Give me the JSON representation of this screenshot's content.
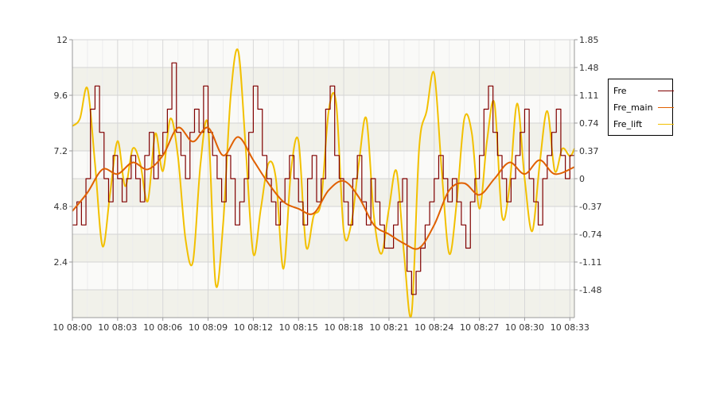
{
  "chart_data": {
    "type": "line",
    "title": "",
    "x_ticks": [
      "10 08:00",
      "10 08:03",
      "10 08:06",
      "10 08:09",
      "10 08:12",
      "10 08:15",
      "10 08:18",
      "10 08:21",
      "10 08:24",
      "10 08:27",
      "10 08:30",
      "10 08:33"
    ],
    "x_range_minutes": [
      0,
      33.3
    ],
    "y_left": {
      "ticks": [
        "12",
        "9.6",
        "7.2",
        "4.8",
        "2.4"
      ],
      "range": [
        0,
        12
      ]
    },
    "y_right": {
      "ticks": [
        "1.85",
        "1.48",
        "1.11",
        "0.74",
        "0.37",
        "0",
        "-0.37",
        "-0.74",
        "-1.11",
        "-1.48"
      ],
      "range": [
        -1.85,
        1.85
      ]
    },
    "grid": true,
    "legend_position": "right",
    "series": [
      {
        "name": "Fre",
        "axis": "left",
        "color": "#800000",
        "style": "step",
        "x": [
          0,
          0.3,
          0.6,
          0.9,
          1.2,
          1.5,
          1.8,
          2.1,
          2.4,
          2.7,
          3.0,
          3.3,
          3.6,
          3.9,
          4.2,
          4.5,
          4.8,
          5.1,
          5.4,
          5.7,
          6.0,
          6.3,
          6.6,
          6.9,
          7.2,
          7.5,
          7.8,
          8.1,
          8.4,
          8.7,
          9.0,
          9.3,
          9.6,
          9.9,
          10.2,
          10.5,
          10.8,
          11.1,
          11.4,
          11.7,
          12.0,
          12.3,
          12.6,
          12.9,
          13.2,
          13.5,
          13.8,
          14.1,
          14.4,
          14.7,
          15.0,
          15.3,
          15.6,
          15.9,
          16.2,
          16.5,
          16.8,
          17.1,
          17.4,
          17.7,
          18.0,
          18.3,
          18.6,
          18.9,
          19.2,
          19.5,
          19.8,
          20.1,
          20.4,
          20.7,
          21.0,
          21.3,
          21.6,
          21.9,
          22.2,
          22.5,
          22.8,
          23.1,
          23.4,
          23.7,
          24.0,
          24.3,
          24.6,
          24.9,
          25.2,
          25.5,
          25.8,
          26.1,
          26.4,
          26.7,
          27.0,
          27.3,
          27.6,
          27.9,
          28.2,
          28.5,
          28.8,
          29.1,
          29.4,
          29.7,
          30.0,
          30.3,
          30.6,
          30.9,
          31.2,
          31.5,
          31.8,
          32.1,
          32.4,
          32.7,
          33.0,
          33.3
        ],
        "values": [
          4,
          5,
          4,
          6,
          9,
          10,
          8,
          6,
          5,
          7,
          6,
          5,
          6,
          7,
          6,
          5,
          7,
          8,
          6,
          7,
          8,
          9,
          11,
          8,
          7,
          6,
          8,
          9,
          8,
          10,
          8,
          7,
          6,
          5,
          7,
          6,
          4,
          5,
          6,
          8,
          10,
          9,
          7,
          6,
          5,
          4,
          5,
          6,
          7,
          6,
          5,
          4,
          6,
          7,
          5,
          6,
          9,
          10,
          7,
          6,
          5,
          4,
          6,
          7,
          5,
          4,
          6,
          5,
          4,
          3,
          3,
          4,
          5,
          6,
          2,
          1,
          2,
          3,
          4,
          5,
          6,
          7,
          6,
          5,
          6,
          5,
          4,
          3,
          5,
          6,
          7,
          9,
          10,
          8,
          7,
          6,
          5,
          6,
          7,
          8,
          9,
          6,
          5,
          4,
          6,
          7,
          8,
          9,
          7,
          6,
          7,
          7
        ]
      },
      {
        "name": "Fre_main",
        "axis": "left",
        "color": "#e06000",
        "style": "smooth",
        "x": [
          0,
          1,
          2,
          3,
          4,
          5,
          6,
          7,
          8,
          9,
          10,
          11,
          12,
          13,
          14,
          15,
          16,
          17,
          18,
          19,
          20,
          21,
          22,
          23,
          24,
          25,
          26,
          27,
          28,
          29,
          30,
          31,
          32,
          33.3
        ],
        "values": [
          4.6,
          5.4,
          6.4,
          6.2,
          6.7,
          6.4,
          7.0,
          8.2,
          7.6,
          8.2,
          7.0,
          7.8,
          6.8,
          5.8,
          5.0,
          4.7,
          4.5,
          5.5,
          5.9,
          5.2,
          4.0,
          3.6,
          3.2,
          3.0,
          4.0,
          5.5,
          5.8,
          5.3,
          6.0,
          6.7,
          6.2,
          6.8,
          6.2,
          6.5
        ]
      },
      {
        "name": "Fre_lift",
        "axis": "right",
        "color": "#f2c000",
        "style": "smooth",
        "x": [
          0,
          0.5,
          1,
          1.5,
          2,
          2.5,
          3,
          3.5,
          4,
          4.5,
          5,
          5.5,
          6,
          6.5,
          7,
          7.5,
          8,
          8.5,
          9,
          9.5,
          10,
          10.5,
          11,
          11.5,
          12,
          12.5,
          13,
          13.5,
          14,
          14.5,
          15,
          15.5,
          16,
          16.5,
          17,
          17.5,
          18,
          18.5,
          19,
          19.5,
          20,
          20.5,
          21,
          21.5,
          22,
          22.5,
          23,
          23.5,
          24,
          24.5,
          25,
          25.5,
          26,
          26.5,
          27,
          27.5,
          28,
          28.5,
          29,
          29.5,
          30,
          30.5,
          31,
          31.5,
          32,
          32.5,
          33,
          33.3
        ],
        "values": [
          0.7,
          0.8,
          1.2,
          0.2,
          -0.9,
          -0.2,
          0.5,
          -0.1,
          0.4,
          0.2,
          -0.3,
          0.6,
          0.1,
          0.8,
          0.3,
          -0.8,
          -1.1,
          0.2,
          0.7,
          -1.4,
          -0.6,
          1.1,
          1.7,
          0.4,
          -1.0,
          -0.4,
          0.2,
          0.0,
          -1.2,
          0.1,
          0.5,
          -0.9,
          -0.5,
          -0.3,
          0.9,
          1.0,
          -0.7,
          -0.6,
          0.2,
          0.8,
          -0.5,
          -1.0,
          -0.4,
          0.1,
          -1.0,
          -1.8,
          0.4,
          0.9,
          1.4,
          0.1,
          -1.0,
          -0.3,
          0.8,
          0.6,
          -0.4,
          0.5,
          1.0,
          -0.5,
          -0.1,
          1.0,
          0.0,
          -0.7,
          0.2,
          0.9,
          0.1,
          0.4,
          0.3,
          0.4
        ]
      }
    ]
  }
}
